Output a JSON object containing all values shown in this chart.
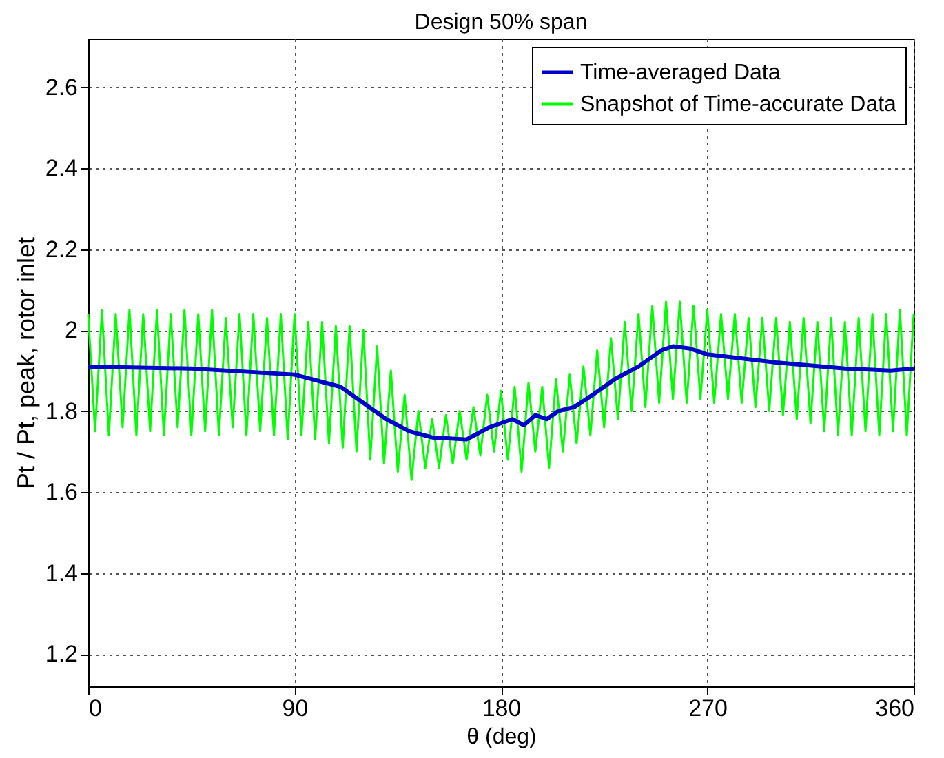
{
  "chart_data": {
    "type": "line",
    "title": "Design 50% span",
    "xlabel": "θ (deg)",
    "ylabel": "Pt / Pt, peak, rotor inlet",
    "xlim": [
      0,
      360
    ],
    "xticks": [
      0,
      90,
      180,
      270,
      360
    ],
    "ylim": [
      1.12,
      2.72
    ],
    "yticks": [
      1.2,
      1.4,
      1.6,
      1.8,
      2,
      2.2,
      2.4,
      2.6
    ],
    "grid": true,
    "legend": "top right",
    "marker": "none",
    "line_style": "solid",
    "series": [
      {
        "name": "Time-averaged Data",
        "color": "#0000cc",
        "x": [
          0,
          45,
          90,
          110,
          120,
          130,
          140,
          150,
          165,
          175,
          185,
          190,
          195,
          200,
          205,
          212,
          220,
          230,
          240,
          250,
          255,
          262,
          270,
          300,
          330,
          350,
          360
        ],
        "values": [
          1.91,
          1.905,
          1.89,
          1.86,
          1.82,
          1.78,
          1.75,
          1.735,
          1.73,
          1.76,
          1.78,
          1.765,
          1.79,
          1.78,
          1.8,
          1.81,
          1.84,
          1.88,
          1.91,
          1.95,
          1.96,
          1.955,
          1.94,
          1.92,
          1.905,
          1.9,
          1.905
        ]
      },
      {
        "name": "Snapshot of Time-accurate Data",
        "color": "#00ff00",
        "x": [
          0,
          3,
          6,
          9,
          12,
          15,
          18,
          21,
          24,
          27,
          30,
          33,
          36,
          39,
          42,
          45,
          48,
          51,
          54,
          57,
          60,
          63,
          66,
          69,
          72,
          75,
          78,
          81,
          84,
          87,
          90,
          93,
          96,
          99,
          102,
          105,
          108,
          111,
          114,
          117,
          120,
          123,
          126,
          129,
          132,
          135,
          138,
          141,
          144,
          147,
          150,
          153,
          156,
          159,
          162,
          165,
          168,
          171,
          174,
          177,
          180,
          183,
          186,
          189,
          192,
          195,
          198,
          201,
          204,
          207,
          210,
          213,
          216,
          219,
          222,
          225,
          228,
          231,
          234,
          237,
          240,
          243,
          246,
          249,
          252,
          255,
          258,
          261,
          264,
          267,
          270,
          273,
          276,
          279,
          282,
          285,
          288,
          291,
          294,
          297,
          300,
          303,
          306,
          309,
          312,
          315,
          318,
          321,
          324,
          327,
          330,
          333,
          336,
          339,
          342,
          345,
          348,
          351,
          354,
          357,
          360
        ],
        "values": [
          2.04,
          1.75,
          2.05,
          1.74,
          2.04,
          1.76,
          2.05,
          1.74,
          2.04,
          1.75,
          2.05,
          1.74,
          2.04,
          1.76,
          2.05,
          1.74,
          2.04,
          1.75,
          2.05,
          1.74,
          2.03,
          1.76,
          2.04,
          1.74,
          2.04,
          1.75,
          2.03,
          1.74,
          2.04,
          1.73,
          2.04,
          1.74,
          2.02,
          1.73,
          2.02,
          1.72,
          2.01,
          1.71,
          2.01,
          1.7,
          2.0,
          1.68,
          1.96,
          1.67,
          1.9,
          1.65,
          1.84,
          1.63,
          1.8,
          1.66,
          1.78,
          1.66,
          1.79,
          1.67,
          1.8,
          1.68,
          1.81,
          1.69,
          1.84,
          1.7,
          1.85,
          1.68,
          1.86,
          1.65,
          1.87,
          1.7,
          1.86,
          1.66,
          1.88,
          1.7,
          1.89,
          1.72,
          1.91,
          1.74,
          1.95,
          1.76,
          1.98,
          1.78,
          2.02,
          1.8,
          2.04,
          1.81,
          2.06,
          1.82,
          2.07,
          1.83,
          2.07,
          1.82,
          2.06,
          1.83,
          2.05,
          1.82,
          2.04,
          1.83,
          2.04,
          1.82,
          2.03,
          1.81,
          2.03,
          1.8,
          2.03,
          1.79,
          2.02,
          1.78,
          2.03,
          1.77,
          2.02,
          1.75,
          2.03,
          1.74,
          2.02,
          1.74,
          2.03,
          1.75,
          2.04,
          1.74,
          2.04,
          1.75,
          2.05,
          1.74,
          2.04
        ]
      }
    ]
  }
}
